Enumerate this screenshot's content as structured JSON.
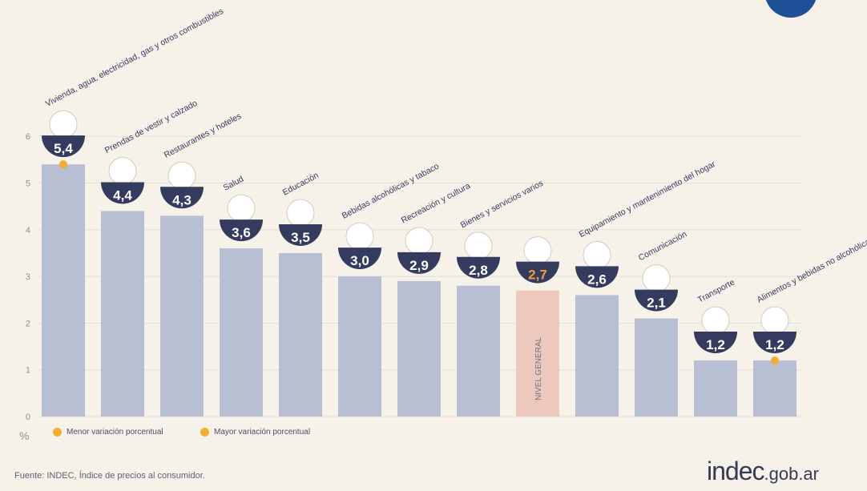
{
  "chart_data": {
    "type": "bar",
    "categories": [
      "Vivienda, agua, electricidad, gas y otros combustibles",
      "Prendas de vestir y calzado",
      "Restaurantes y hoteles",
      "Salud",
      "Educación",
      "Bebidas alcohólicas y tabaco",
      "Recreación y cultura",
      "Bienes y servicios varios",
      "NIVEL GENERAL",
      "Equipamiento y mantenimiento del hogar",
      "Comunicación",
      "Transporte",
      "Alimentos y bebidas no alcohólicas"
    ],
    "values": [
      5.4,
      4.4,
      4.3,
      3.6,
      3.5,
      3.0,
      2.9,
      2.8,
      2.7,
      2.6,
      2.1,
      1.2,
      1.2
    ],
    "value_labels": [
      "5,4",
      "4,4",
      "4,3",
      "3,6",
      "3,5",
      "3,0",
      "2,9",
      "2,8",
      "2,7",
      "2,6",
      "2,1",
      "1,2",
      "1,2"
    ],
    "yticks": [
      "0",
      "1",
      "2",
      "3",
      "4",
      "5",
      "6"
    ],
    "ylim": [
      0,
      6
    ],
    "ylabel": "%",
    "grid": true,
    "highlight_index": 8,
    "max_marker_index": 0,
    "min_marker_index": 12,
    "colors": {
      "bar": "#b9bfd3",
      "highlight_bar": "#ecc9bc",
      "badge": "#353b5e",
      "badge_text": "#ffffff",
      "highlight_text": "#f29a45",
      "marker": "#f2ae2e",
      "grid": "#e4dfd5",
      "axis_text": "#8b8f9e",
      "label_text": "#353b5e"
    },
    "icons": [
      "lightbulb-icon",
      "tshirt-icon",
      "cutlery-icon",
      "medical-cross-icon",
      "notebook-icon",
      "wine-bottle-icon",
      "sun-umbrella-icon",
      "comb-scissors-icon",
      "basket-icon",
      "iron-icon",
      "smartphone-icon",
      "bus-card-icon",
      "food-icon"
    ]
  },
  "legend": {
    "min_label": "Menor variación porcentual",
    "max_label": "Mayor variación porcentual"
  },
  "footer": {
    "source": "Fuente: INDEC, Índice de precios al consumidor.",
    "brand_main": "indec",
    "brand_suffix": ".gob.ar"
  }
}
